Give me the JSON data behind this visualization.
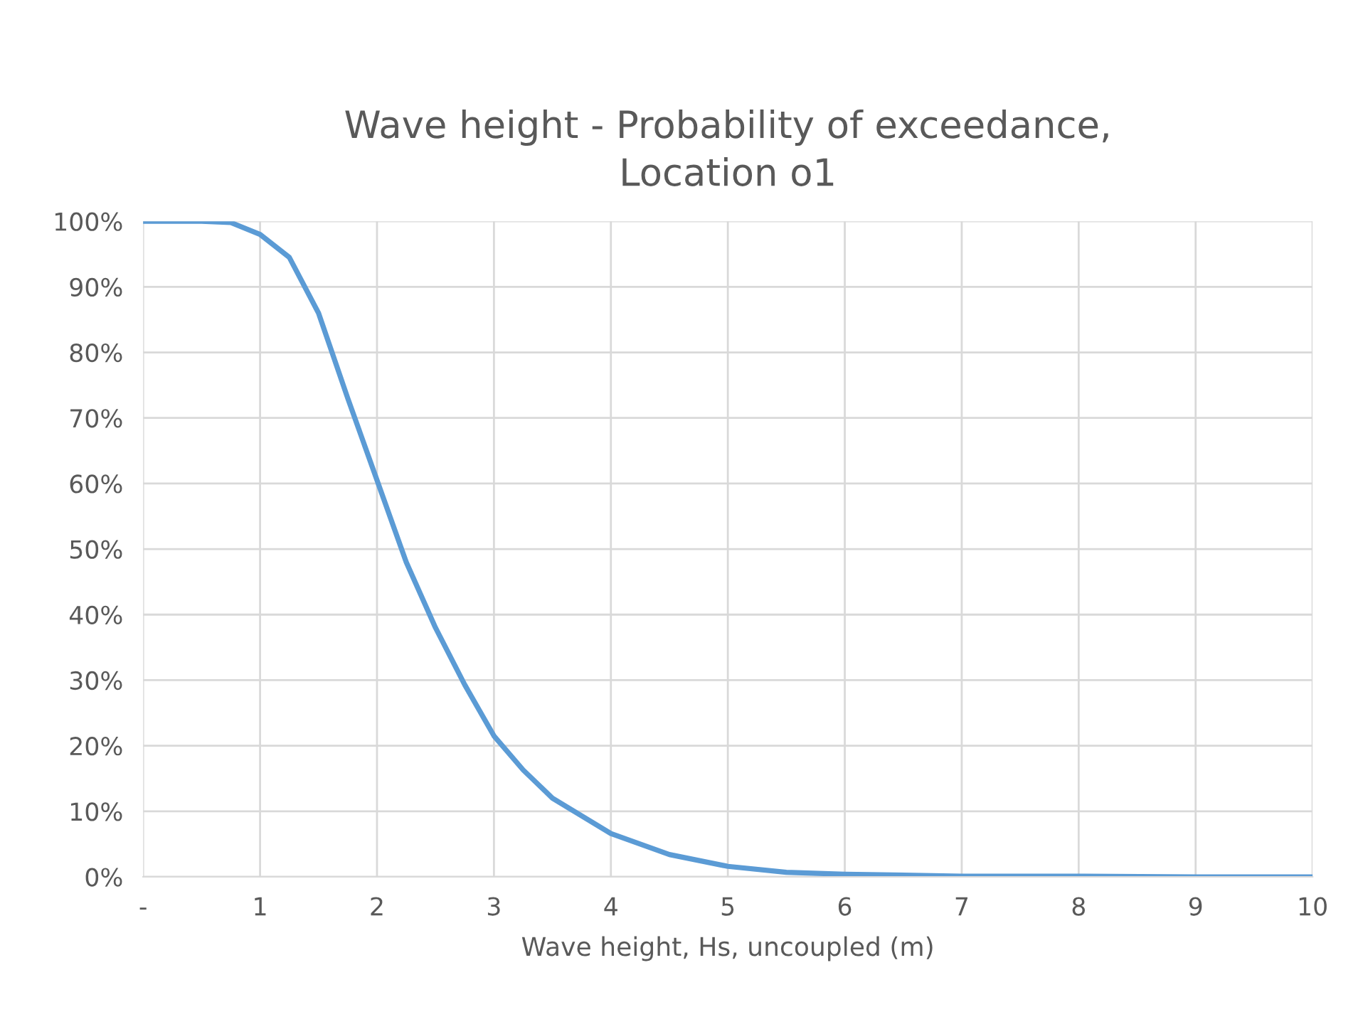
{
  "chart_data": {
    "type": "line",
    "title": "Wave height - Probability of exceedance,\nLocation o1",
    "xlabel": "Wave height, Hs, uncoupled (m)",
    "x": [
      0,
      0.5,
      0.75,
      1,
      1.25,
      1.5,
      1.75,
      2,
      2.25,
      2.5,
      2.75,
      3,
      3.25,
      3.5,
      4,
      4.5,
      5,
      5.5,
      6,
      7,
      8,
      9,
      10
    ],
    "series": [
      {
        "color": "#5b9bd5",
        "values": [
          100,
          100,
          99.8,
          98,
          94.5,
          86,
          73,
          60.5,
          48,
          38,
          29.3,
          21.5,
          16.3,
          12,
          6.6,
          3.4,
          1.6,
          0.7,
          0.4,
          0.1,
          0.1,
          0,
          0
        ]
      }
    ],
    "xlim": [
      0,
      10
    ],
    "xticks": [
      {
        "value": 0,
        "label": "-"
      },
      1,
      2,
      3,
      4,
      5,
      6,
      7,
      8,
      9,
      10
    ],
    "ylim": [
      0,
      100
    ],
    "yticks": [
      {
        "value": 0,
        "label": "0%"
      },
      {
        "value": 10,
        "label": "10%"
      },
      {
        "value": 20,
        "label": "20%"
      },
      {
        "value": 30,
        "label": "30%"
      },
      {
        "value": 40,
        "label": "40%"
      },
      {
        "value": 50,
        "label": "50%"
      },
      {
        "value": 60,
        "label": "60%"
      },
      {
        "value": 70,
        "label": "70%"
      },
      {
        "value": 80,
        "label": "80%"
      },
      {
        "value": 90,
        "label": "90%"
      },
      {
        "value": 100,
        "label": "100%"
      }
    ],
    "grid": true,
    "marker": "none",
    "line_style": "solid",
    "legend": false
  }
}
